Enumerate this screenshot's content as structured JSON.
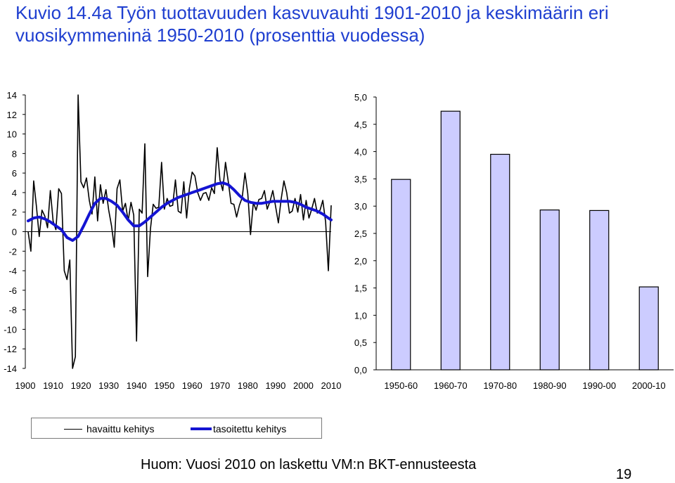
{
  "title": "Kuvio 14.4a Työn tuottavuuden kasvuvauhti 1901-2010 ja keskimäärin eri vuosikymmeninä 1950-2010 (prosenttia vuodessa)",
  "footnote": "Huom: Vuosi 2010 on laskettu VM:n BKT-ennusteesta",
  "page_number": "19",
  "colors": {
    "title": "#1f3fd0",
    "observed": "#000000",
    "smoothed": "#1414d2",
    "bar_fill": "#ccccff",
    "bar_edge": "#000000"
  },
  "legend": [
    "havaittu kehitys",
    "tasoitettu kehitys"
  ],
  "chart_data": [
    {
      "type": "line",
      "title": "",
      "xlabel": "",
      "ylabel": "",
      "xlim": [
        1900,
        2010
      ],
      "ylim": [
        -14,
        14
      ],
      "x_ticks": [
        "1900",
        "1910",
        "1920",
        "1930",
        "1940",
        "1950",
        "1960",
        "1970",
        "1980",
        "1990",
        "2000",
        "2010"
      ],
      "y_ticks": [
        "14",
        "12",
        "10",
        "8",
        "6",
        "4",
        "2",
        "0",
        "-2",
        "-4",
        "-6",
        "-8",
        "-10",
        "-12",
        "-14"
      ],
      "grid": false,
      "legend_position": "bottom",
      "series": [
        {
          "name": "havaittu kehitys",
          "x": [
            1901,
            1902,
            1903,
            1904,
            1905,
            1906,
            1907,
            1908,
            1909,
            1910,
            1911,
            1912,
            1913,
            1914,
            1915,
            1916,
            1917,
            1918,
            1919,
            1920,
            1921,
            1922,
            1923,
            1924,
            1925,
            1926,
            1927,
            1928,
            1929,
            1930,
            1931,
            1932,
            1933,
            1934,
            1935,
            1936,
            1937,
            1938,
            1939,
            1940,
            1941,
            1942,
            1943,
            1944,
            1945,
            1946,
            1947,
            1948,
            1949,
            1950,
            1951,
            1952,
            1953,
            1954,
            1955,
            1956,
            1957,
            1958,
            1959,
            1960,
            1961,
            1962,
            1963,
            1964,
            1965,
            1966,
            1967,
            1968,
            1969,
            1970,
            1971,
            1972,
            1973,
            1974,
            1975,
            1976,
            1977,
            1978,
            1979,
            1980,
            1981,
            1982,
            1983,
            1984,
            1985,
            1986,
            1987,
            1988,
            1989,
            1990,
            1991,
            1992,
            1993,
            1994,
            1995,
            1996,
            1997,
            1998,
            1999,
            2000,
            2001,
            2002,
            2003,
            2004,
            2005,
            2006,
            2007,
            2008,
            2009,
            2010
          ],
          "y": [
            0,
            -2,
            5.2,
            2.6,
            -0.5,
            2.2,
            1.6,
            0.4,
            4.2,
            1.1,
            0.2,
            4.4,
            3.9,
            -4,
            -4.9,
            -2.9,
            -14,
            -12.8,
            14,
            5.1,
            4.5,
            5.5,
            3.2,
            1.8,
            5.6,
            1.1,
            4.8,
            2.9,
            4.3,
            2.2,
            0.6,
            -1.6,
            4.4,
            5.3,
            2.1,
            2.9,
            1.1,
            3,
            1.7,
            -11.2,
            2.3,
            1.9,
            9,
            -4.6,
            0.3,
            2.8,
            2.4,
            2.5,
            7.1,
            2.3,
            3.4,
            2.6,
            2.7,
            5.3,
            2.1,
            1.9,
            5.1,
            1.4,
            4.4,
            6.1,
            5.7,
            4,
            3.2,
            3.9,
            4,
            3.2,
            4.5,
            3.9,
            8.6,
            5.3,
            4.2,
            7.1,
            5.1,
            2.9,
            2.8,
            1.5,
            2.7,
            3.5,
            6,
            3.9,
            -0.3,
            3,
            2.2,
            3.3,
            3.4,
            4.2,
            2.3,
            3.1,
            4.2,
            2.6,
            0.9,
            3.3,
            5.2,
            4,
            1.9,
            2.1,
            3.4,
            2,
            3.8,
            1.2,
            3.2,
            1.4,
            2.3,
            3.4,
            1.9,
            2.2,
            3.2,
            1,
            -4,
            2.7
          ]
        },
        {
          "name": "tasoitettu kehitys",
          "x": [
            1901,
            1903,
            1905,
            1907,
            1909,
            1911,
            1913,
            1915,
            1917,
            1919,
            1921,
            1923,
            1925,
            1927,
            1929,
            1931,
            1933,
            1935,
            1937,
            1939,
            1941,
            1943,
            1945,
            1947,
            1949,
            1951,
            1953,
            1955,
            1957,
            1959,
            1961,
            1963,
            1965,
            1967,
            1969,
            1971,
            1973,
            1975,
            1977,
            1979,
            1981,
            1983,
            1985,
            1987,
            1989,
            1991,
            1993,
            1995,
            1997,
            1999,
            2001,
            2003,
            2005,
            2007,
            2009,
            2010
          ],
          "y": [
            1.1,
            1.4,
            1.5,
            1.3,
            1.0,
            0.6,
            0.2,
            -0.6,
            -0.9,
            -0.5,
            0.6,
            1.8,
            2.9,
            3.4,
            3.4,
            3.1,
            2.7,
            2.0,
            1.2,
            0.6,
            0.6,
            1.0,
            1.5,
            2.0,
            2.5,
            2.9,
            3.2,
            3.5,
            3.7,
            3.9,
            4.1,
            4.3,
            4.5,
            4.7,
            4.9,
            5.0,
            4.8,
            4.3,
            3.7,
            3.2,
            3.0,
            2.9,
            2.9,
            3.0,
            3.1,
            3.1,
            3.1,
            3.1,
            3.0,
            2.8,
            2.5,
            2.3,
            2.1,
            1.8,
            1.4,
            1.2
          ]
        }
      ]
    },
    {
      "type": "bar",
      "title": "",
      "xlabel": "",
      "ylabel": "",
      "categories": [
        "1950-60",
        "1960-70",
        "1970-80",
        "1980-90",
        "1990-00",
        "2000-10"
      ],
      "values": [
        3.49,
        4.74,
        3.95,
        2.93,
        2.92,
        1.52
      ],
      "ylim": [
        0,
        5
      ],
      "y_ticks": [
        "5,0",
        "4,5",
        "4,0",
        "3,5",
        "3,0",
        "2,5",
        "2,0",
        "1,5",
        "1,0",
        "0,5",
        "0,0"
      ],
      "grid": false
    }
  ]
}
